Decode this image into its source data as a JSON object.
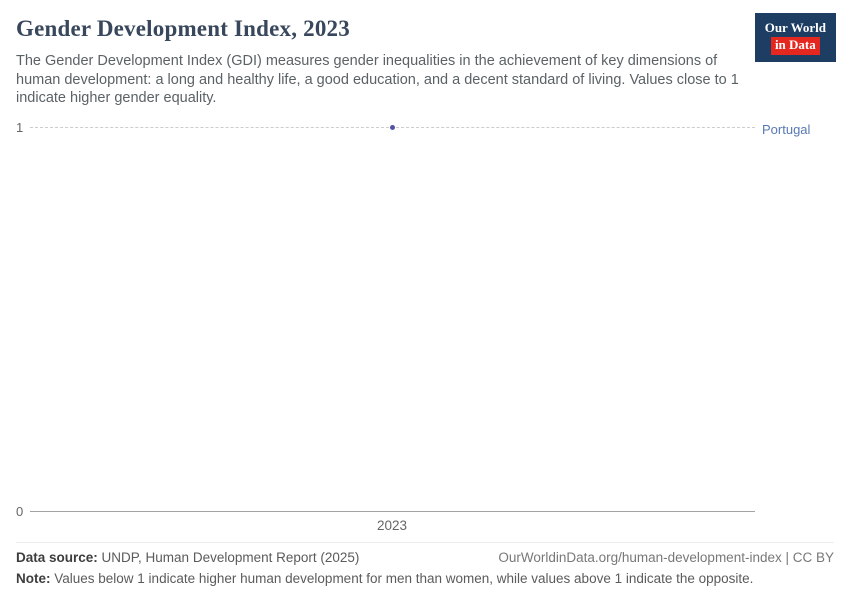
{
  "header": {
    "title": "Gender Development Index, 2023",
    "logo_line1": "Our World",
    "logo_line2": "in Data"
  },
  "subtitle": "The Gender Development Index (GDI) measures gender inequalities in the achievement of key dimensions of human development: a long and healthy life, a good education, and a decent standard of living. Values close to 1 indicate higher gender equality.",
  "chart_data": {
    "type": "scatter",
    "title": "Gender Development Index, 2023",
    "x": [
      2023
    ],
    "series": [
      {
        "name": "Portugal",
        "values": [
          1.0
        ]
      }
    ],
    "xlabel": "",
    "ylabel": "",
    "ylim": [
      0,
      1
    ],
    "yticks": [
      "1",
      "0"
    ],
    "xticks": [
      "2023"
    ],
    "grid": "dashed horizontal line at y=1 only",
    "legend_position": "right of point, inline entity label",
    "point_color": "#5452a3",
    "entity_label_color": "#5878b3"
  },
  "footer": {
    "source_label": "Data source:",
    "source_text": " UNDP, Human Development Report (2025)",
    "link_text": "OurWorldinData.org/human-development-index | CC BY",
    "note_label": "Note:",
    "note_text": " Values below 1 indicate higher human development for men than women, while values above 1 indicate the opposite."
  }
}
